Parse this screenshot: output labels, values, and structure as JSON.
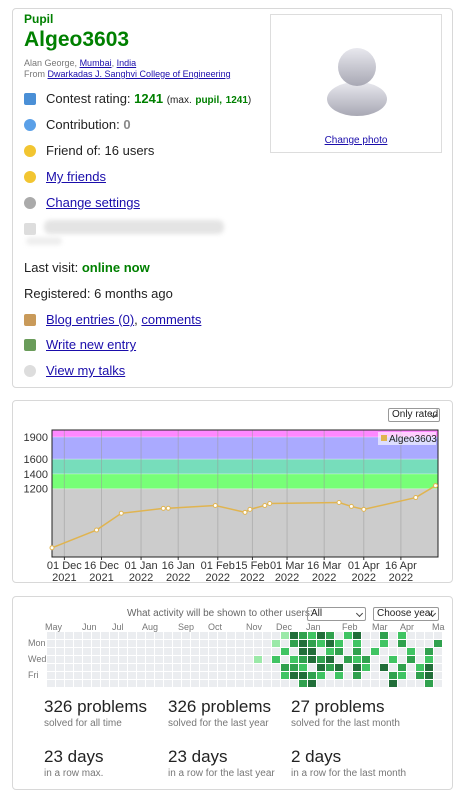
{
  "profile": {
    "rank": "Pupil",
    "handle": "Algeo3603",
    "name": "Alan George,",
    "city": "Mumbai",
    "sep": ",",
    "country": "India",
    "from": "From",
    "organization": "Dwarkadas J. Sanghvi College of Engineering",
    "rating_label": "Contest rating:",
    "rating": 1241,
    "max_open": "(max.",
    "max_rank": "pupil",
    "max_sep": ",",
    "max_rating": 1241,
    "max_close": ")",
    "contribution_label": "Contribution:",
    "contribution": 0,
    "friend_of": "Friend of: 16 users",
    "my_friends": "My friends",
    "change_settings": "Change settings",
    "last_visit_label": "Last visit:",
    "last_visit": "online now",
    "registered": "Registered: 6 months ago",
    "blog_entries": "Blog entries (0)",
    "blog_sep": ",",
    "comments": "comments",
    "write_entry": "Write new entry",
    "talks": "View my talks",
    "change_photo": "Change photo"
  },
  "rating_filter": "Only rated",
  "chart_data": {
    "type": "line",
    "x": [
      "2021-11-26",
      "2021-12-14",
      "2021-12-24",
      "2022-01-10",
      "2022-01-12",
      "2022-01-31",
      "2022-02-12",
      "2022-02-14",
      "2022-02-20",
      "2022-02-22",
      "2022-03-22",
      "2022-03-27",
      "2022-04-01",
      "2022-04-22",
      "2022-04-30"
    ],
    "series": [
      {
        "name": "Algeo3603",
        "color": "#e0b450",
        "values": [
          400,
          640,
          867,
          933,
          935,
          973,
          880,
          920,
          973,
          1000,
          1013,
          960,
          920,
          1080,
          1241
        ]
      }
    ],
    "xlim": [
      "2021-11-26",
      "2022-05-01"
    ],
    "xticks": [
      {
        "value": "2021-12-01",
        "label": "01 Dec 2021"
      },
      {
        "value": "2021-12-16",
        "label": "16 Dec 2021"
      },
      {
        "value": "2022-01-01",
        "label": "01 Jan 2022"
      },
      {
        "value": "2022-01-16",
        "label": "16 Jan 2022"
      },
      {
        "value": "2022-02-01",
        "label": "01 Feb 2022"
      },
      {
        "value": "2022-02-15",
        "label": "15 Feb 2022"
      },
      {
        "value": "2022-03-01",
        "label": "01 Mar 2022"
      },
      {
        "value": "2022-03-16",
        "label": "16 Mar 2022"
      },
      {
        "value": "2022-04-01",
        "label": "01 Apr 2022"
      },
      {
        "value": "2022-04-16",
        "label": "16 Apr 2022"
      }
    ],
    "ylim": [
      275,
      1995
    ],
    "yticks": [
      1200,
      1400,
      1600,
      1900
    ],
    "bands": [
      {
        "from": 1200,
        "color": "#77ff77"
      },
      {
        "from": 1400,
        "color": "#77ddbb"
      },
      {
        "from": 1600,
        "color": "#aaaaff"
      },
      {
        "from": 1900,
        "color": "#ff88ff"
      }
    ],
    "base_color": "#cccccc",
    "grid": true,
    "legend": "upper right"
  },
  "activity": {
    "question": "What activity will be shown to other users:",
    "visibility": "All",
    "year": "Choose year",
    "months": [
      "May",
      "Jun",
      "Jul",
      "Aug",
      "Sep",
      "Oct",
      "Nov",
      "Dec",
      "Jan",
      "Feb",
      "Mar",
      "Apr",
      "Ma"
    ],
    "days": [
      null,
      "Mon",
      null,
      "Wed",
      null,
      "Fri",
      null
    ],
    "colors": [
      "#ebedf0",
      "#9be9a8",
      "#40c463",
      "#30a14e",
      "#216e39"
    ],
    "weeks": [
      [
        0,
        0,
        0,
        0,
        0,
        0,
        0
      ],
      [
        0,
        0,
        0,
        0,
        0,
        0,
        0
      ],
      [
        0,
        0,
        0,
        0,
        0,
        0,
        0
      ],
      [
        0,
        0,
        0,
        0,
        0,
        0,
        0
      ],
      [
        0,
        0,
        0,
        0,
        0,
        0,
        0
      ],
      [
        0,
        0,
        0,
        0,
        0,
        0,
        0
      ],
      [
        0,
        0,
        0,
        0,
        0,
        0,
        0
      ],
      [
        0,
        0,
        0,
        0,
        0,
        0,
        0
      ],
      [
        0,
        0,
        0,
        0,
        0,
        0,
        0
      ],
      [
        0,
        0,
        0,
        0,
        0,
        0,
        0
      ],
      [
        0,
        0,
        0,
        0,
        0,
        0,
        0
      ],
      [
        0,
        0,
        0,
        0,
        0,
        0,
        0
      ],
      [
        0,
        0,
        0,
        0,
        0,
        0,
        0
      ],
      [
        0,
        0,
        0,
        0,
        0,
        0,
        0
      ],
      [
        0,
        0,
        0,
        0,
        0,
        0,
        0
      ],
      [
        0,
        0,
        0,
        0,
        0,
        0,
        0
      ],
      [
        0,
        0,
        0,
        0,
        0,
        0,
        0
      ],
      [
        0,
        0,
        0,
        0,
        0,
        0,
        0
      ],
      [
        0,
        0,
        0,
        0,
        0,
        0,
        0
      ],
      [
        0,
        0,
        0,
        0,
        0,
        0,
        0
      ],
      [
        0,
        0,
        0,
        0,
        0,
        0,
        0
      ],
      [
        0,
        0,
        0,
        0,
        0,
        0,
        0
      ],
      [
        0,
        0,
        0,
        0,
        0,
        0,
        0
      ],
      [
        0,
        0,
        0,
        1,
        0,
        0,
        0
      ],
      [
        0,
        0,
        0,
        0,
        0,
        0,
        0
      ],
      [
        0,
        1,
        0,
        2,
        0,
        0,
        0
      ],
      [
        1,
        0,
        2,
        0,
        3,
        2,
        0
      ],
      [
        4,
        3,
        0,
        2,
        3,
        4,
        0
      ],
      [
        3,
        4,
        4,
        3,
        2,
        4,
        3
      ],
      [
        2,
        3,
        4,
        4,
        0,
        3,
        4
      ],
      [
        4,
        2,
        0,
        3,
        4,
        2,
        0
      ],
      [
        3,
        4,
        2,
        4,
        3,
        0,
        0
      ],
      [
        0,
        2,
        3,
        0,
        4,
        2,
        0
      ],
      [
        2,
        0,
        0,
        3,
        0,
        0,
        0
      ],
      [
        4,
        2,
        3,
        2,
        4,
        3,
        0
      ],
      [
        0,
        0,
        0,
        3,
        2,
        0,
        0
      ],
      [
        0,
        0,
        2,
        0,
        0,
        0,
        0
      ],
      [
        3,
        2,
        0,
        0,
        4,
        0,
        0
      ],
      [
        0,
        0,
        0,
        2,
        0,
        3,
        4
      ],
      [
        2,
        3,
        0,
        0,
        3,
        2,
        0
      ],
      [
        0,
        0,
        2,
        3,
        0,
        0,
        0
      ],
      [
        0,
        0,
        0,
        0,
        2,
        3,
        0
      ],
      [
        0,
        0,
        3,
        2,
        4,
        4,
        3
      ],
      [
        0,
        3,
        0,
        0,
        0,
        0,
        0
      ]
    ],
    "stats": [
      {
        "value": "326 problems",
        "caption": "solved for all time"
      },
      {
        "value": "326 problems",
        "caption": "solved for the last year"
      },
      {
        "value": "27 problems",
        "caption": "solved for the last month"
      },
      {
        "value": "23 days",
        "caption": "in a row max."
      },
      {
        "value": "23 days",
        "caption": "in a row for the last year"
      },
      {
        "value": "2 days",
        "caption": "in a row for the last month"
      }
    ]
  }
}
